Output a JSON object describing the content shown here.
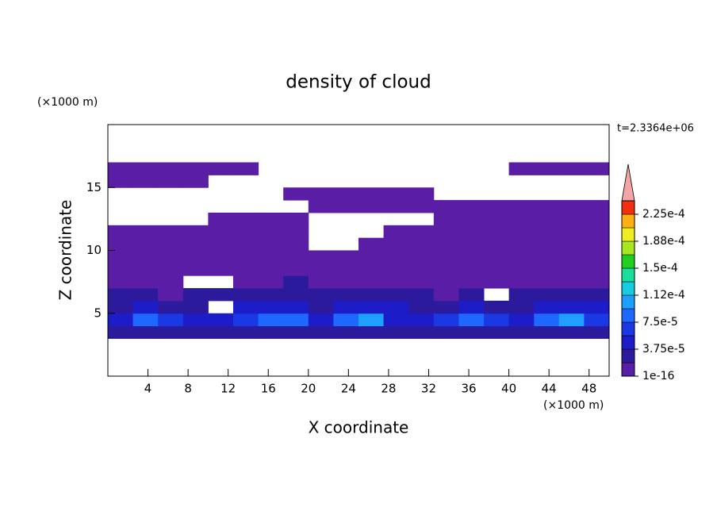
{
  "chart_data": {
    "type": "contour",
    "title": "density of cloud",
    "xlabel": "X coordinate",
    "ylabel": "Z coordinate",
    "x_unit": "(×1000 m)",
    "y_unit": "(×1000 m)",
    "time_label": "t=2.3364e+06",
    "xlim": [
      0,
      50
    ],
    "ylim": [
      0,
      20
    ],
    "xticks": [
      4,
      8,
      12,
      16,
      20,
      24,
      28,
      32,
      36,
      40,
      44,
      48
    ],
    "yticks": [
      5,
      10,
      15
    ],
    "x": [
      1.25,
      3.75,
      6.25,
      8.75,
      11.25,
      13.75,
      16.25,
      18.75,
      21.25,
      23.75,
      26.25,
      28.75,
      31.25,
      33.75,
      36.25,
      38.75,
      41.25,
      43.75,
      46.25,
      48.75
    ],
    "y": [
      3.5,
      4.5,
      5.5,
      6.5,
      7.5,
      8.5,
      9.5,
      10.5,
      11.5,
      12.5,
      13.5,
      14.5,
      15.5,
      16.5
    ],
    "values": [
      [
        3e-05,
        2e-05,
        3e-05,
        3e-05,
        2e-05,
        3e-05,
        3e-05,
        2e-05,
        3e-05,
        2e-05,
        3e-05,
        3e-05,
        2e-05,
        2e-05,
        3e-05,
        3e-05,
        2e-05,
        3e-05,
        3e-05,
        2e-05
      ],
      [
        4e-05,
        8e-05,
        7e-05,
        4e-05,
        5e-05,
        6e-05,
        8e-05,
        8e-05,
        5e-05,
        9e-05,
        0.0001,
        5e-05,
        4e-05,
        6e-05,
        8e-05,
        6e-05,
        5e-05,
        8e-05,
        0.0001,
        7e-05
      ],
      [
        3e-05,
        4e-05,
        3e-05,
        2e-05,
        null,
        4e-05,
        5e-05,
        4e-05,
        3e-05,
        4e-05,
        5e-05,
        4e-05,
        3e-05,
        2e-05,
        4e-05,
        3e-05,
        2e-05,
        4e-05,
        5e-05,
        4e-05
      ],
      [
        2e-05,
        2e-05,
        1e-05,
        2e-05,
        2e-05,
        2e-05,
        3e-05,
        2e-05,
        2e-05,
        2e-05,
        3e-05,
        2e-05,
        2e-05,
        1e-05,
        2e-05,
        null,
        2e-05,
        2e-05,
        2e-05,
        2e-05
      ],
      [
        1e-05,
        1e-05,
        1e-05,
        null,
        null,
        1e-05,
        1e-05,
        2e-05,
        1e-05,
        1e-05,
        1e-05,
        1e-05,
        1e-05,
        1e-05,
        1e-05,
        1e-05,
        1e-05,
        1e-05,
        1e-05,
        1e-05
      ],
      [
        1e-06,
        1e-06,
        1e-06,
        1e-06,
        1e-06,
        1e-06,
        1e-06,
        1e-06,
        1e-06,
        1e-06,
        1e-06,
        1e-06,
        1e-06,
        1e-06,
        1e-06,
        1e-06,
        1e-06,
        1e-06,
        1e-06,
        1e-06
      ],
      [
        1e-06,
        1e-06,
        1e-06,
        1e-06,
        1e-06,
        1e-06,
        1e-06,
        1e-06,
        1e-06,
        1e-06,
        1e-06,
        1e-06,
        1e-06,
        1e-06,
        1e-06,
        1e-06,
        1e-06,
        1e-06,
        1e-06,
        1e-06
      ],
      [
        1e-06,
        1e-06,
        1e-06,
        1e-06,
        1e-06,
        1e-06,
        1e-06,
        1e-06,
        null,
        null,
        1e-06,
        1e-06,
        1e-06,
        1e-06,
        1e-06,
        1e-06,
        1e-06,
        1e-06,
        1e-06,
        1e-06
      ],
      [
        1e-06,
        1e-06,
        1e-06,
        1e-06,
        1e-06,
        1e-06,
        1e-06,
        1e-06,
        null,
        null,
        null,
        1e-06,
        1e-06,
        1e-06,
        1e-06,
        1e-06,
        1e-06,
        1e-06,
        1e-06,
        1e-06
      ],
      [
        null,
        null,
        null,
        null,
        1e-06,
        1e-06,
        1e-06,
        1e-06,
        null,
        null,
        null,
        null,
        null,
        1e-06,
        1e-06,
        1e-06,
        1e-06,
        1e-06,
        1e-06,
        1e-06
      ],
      [
        null,
        null,
        null,
        null,
        null,
        null,
        null,
        null,
        1e-06,
        1e-06,
        1e-06,
        1e-06,
        1e-06,
        1e-06,
        1e-06,
        1e-06,
        1e-06,
        1e-06,
        1e-06,
        1e-06
      ],
      [
        null,
        null,
        null,
        null,
        null,
        null,
        null,
        1e-06,
        1e-06,
        1e-06,
        1e-06,
        1e-06,
        1e-06,
        null,
        null,
        null,
        null,
        null,
        null,
        null
      ],
      [
        1e-06,
        1e-06,
        1e-06,
        1e-06,
        null,
        null,
        null,
        null,
        null,
        null,
        null,
        null,
        null,
        null,
        null,
        null,
        null,
        null,
        null,
        null
      ],
      [
        1e-06,
        1e-06,
        1e-06,
        1e-06,
        1e-06,
        1e-06,
        null,
        null,
        null,
        null,
        null,
        null,
        null,
        null,
        null,
        null,
        1e-06,
        1e-06,
        1e-06,
        1e-06
      ]
    ],
    "levels": [
      1e-16,
      1.875e-05,
      3.75e-05,
      5.625e-05,
      7.5e-05,
      9.375e-05,
      0.0001125,
      0.00013125,
      0.00015,
      0.00016875,
      0.0001875,
      0.00020625,
      0.000225,
      0.00024375
    ],
    "colors": [
      "#5a1ea6",
      "#2c1a9c",
      "#1c1cc8",
      "#1a38e4",
      "#1e68ff",
      "#1ea0ff",
      "#18cce0",
      "#18e09a",
      "#20d020",
      "#a8e620",
      "#f0ee20",
      "#ffb010",
      "#f03010"
    ],
    "extend_color": "#f4a6a6",
    "colorbar_ticks": [
      {
        "value": 1e-16,
        "label": "1e-16"
      },
      {
        "value": 3.75e-05,
        "label": "3.75e-5"
      },
      {
        "value": 7.5e-05,
        "label": "7.5e-5"
      },
      {
        "value": 0.0001125,
        "label": "1.12e-4"
      },
      {
        "value": 0.00015,
        "label": "1.5e-4"
      },
      {
        "value": 0.0001875,
        "label": "1.88e-4"
      },
      {
        "value": 0.000225,
        "label": "2.25e-4"
      }
    ]
  }
}
